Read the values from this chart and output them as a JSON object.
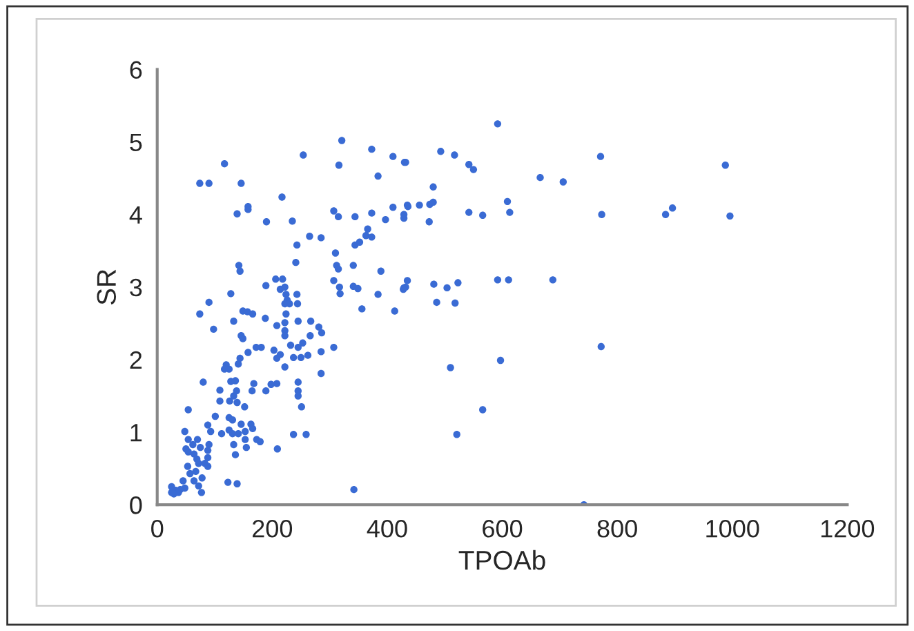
{
  "chart_data": {
    "type": "scatter",
    "xlabel": "TPOAb",
    "ylabel": "SR",
    "xlim": [
      0,
      1200
    ],
    "xticks": [
      0,
      200,
      400,
      600,
      800,
      1000,
      1200
    ],
    "ylim": [
      0,
      6
    ],
    "yticks": [
      0,
      1,
      2,
      3,
      4,
      5,
      6
    ],
    "grid": false,
    "marker": "circle",
    "series": [
      {
        "color": "#3a6bd4",
        "x": [
          592,
          771,
          493,
          517,
          542,
          550,
          432,
          666,
          706,
          435,
          456,
          474,
          480,
          480,
          429,
          473,
          542,
          566,
          609,
          613,
          773,
          884,
          896,
          988,
          996,
          429,
          435,
          481,
          486,
          504,
          518,
          523,
          592,
          611,
          688,
          510,
          597,
          772,
          566,
          521,
          742,
          321,
          254,
          373,
          410,
          430,
          117,
          384,
          74,
          90,
          146,
          316,
          217,
          158,
          158,
          139,
          190,
          235,
          307,
          315,
          344,
          373,
          397,
          410,
          436,
          429,
          265,
          285,
          243,
          344,
          352,
          363,
          366,
          373,
          310,
          312,
          315,
          341,
          241,
          142,
          144,
          389,
          307,
          317,
          318,
          341,
          349,
          384,
          356,
          413,
          432,
          428,
          206,
          218,
          189,
          128,
          90,
          74,
          98,
          133,
          149,
          157,
          166,
          146,
          149,
          188,
          208,
          222,
          214,
          222,
          224,
          226,
          222,
          224,
          230,
          244,
          243,
          222,
          222,
          245,
          267,
          266,
          281,
          286,
          307,
          285,
          245,
          250,
          262,
          253,
          203,
          208,
          214,
          222,
          237,
          232,
          181,
          172,
          158,
          144,
          141,
          120,
          117,
          125,
          80,
          109,
          128,
          136,
          133,
          138,
          165,
          168,
          189,
          198,
          208,
          126,
          139,
          152,
          109,
          245,
          245,
          245,
          285,
          251,
          101,
          54,
          88,
          93,
          112,
          125,
          131,
          141,
          125,
          131,
          146,
          153,
          163,
          166,
          173,
          179,
          133,
          153,
          155,
          136,
          209,
          237,
          259,
          48,
          54,
          50,
          54,
          62,
          70,
          75,
          90,
          88,
          88,
          64,
          69,
          72,
          83,
          88,
          53,
          57,
          67,
          78,
          64,
          72,
          77,
          45,
          48,
          123,
          139,
          25,
          32,
          37,
          40,
          29,
          25,
          342
        ],
        "values": [
          5.25,
          4.8,
          4.87,
          4.82,
          4.69,
          4.62,
          4.72,
          4.51,
          4.45,
          4.13,
          4.13,
          4.14,
          4.17,
          4.38,
          3.95,
          3.9,
          4.03,
          3.99,
          4.18,
          4.03,
          4.0,
          4.0,
          4.09,
          4.68,
          3.98,
          2.99,
          3.09,
          3.04,
          2.79,
          2.99,
          2.78,
          3.06,
          3.1,
          3.1,
          3.1,
          1.89,
          1.99,
          2.18,
          1.31,
          0.97,
          0.0,
          5.02,
          4.82,
          4.9,
          4.8,
          4.72,
          4.7,
          4.53,
          4.43,
          4.43,
          4.43,
          4.68,
          4.24,
          4.11,
          4.07,
          4.01,
          3.9,
          3.91,
          4.05,
          3.97,
          3.97,
          4.02,
          3.93,
          4.1,
          4.11,
          4.0,
          3.7,
          3.68,
          3.58,
          3.58,
          3.62,
          3.71,
          3.8,
          3.69,
          3.47,
          3.3,
          3.25,
          3.3,
          3.34,
          3.3,
          3.22,
          3.22,
          3.09,
          3.0,
          2.91,
          3.01,
          2.98,
          2.9,
          2.7,
          2.67,
          3.0,
          2.97,
          3.11,
          3.11,
          3.02,
          2.91,
          2.79,
          2.63,
          2.42,
          2.53,
          2.67,
          2.66,
          2.63,
          2.33,
          2.29,
          2.57,
          2.47,
          2.51,
          2.97,
          3.0,
          2.9,
          2.82,
          2.77,
          2.63,
          2.77,
          2.77,
          2.9,
          2.4,
          2.33,
          2.53,
          2.53,
          2.33,
          2.45,
          2.37,
          2.17,
          2.11,
          2.17,
          2.03,
          2.06,
          2.23,
          2.13,
          2.02,
          2.07,
          1.9,
          2.03,
          2.2,
          2.17,
          2.17,
          2.1,
          2.02,
          1.94,
          1.93,
          1.87,
          1.87,
          1.69,
          1.58,
          1.7,
          1.71,
          1.5,
          1.57,
          1.57,
          1.67,
          1.57,
          1.66,
          1.67,
          1.43,
          1.41,
          1.35,
          1.43,
          1.69,
          1.57,
          1.5,
          1.81,
          1.35,
          1.22,
          1.31,
          1.1,
          1.01,
          0.98,
          1.03,
          0.98,
          0.98,
          1.2,
          1.17,
          1.11,
          1.01,
          1.11,
          1.05,
          0.9,
          0.87,
          0.83,
          0.9,
          0.79,
          0.69,
          0.77,
          0.97,
          0.97,
          1.01,
          0.9,
          0.77,
          0.73,
          0.83,
          0.9,
          0.79,
          0.83,
          0.75,
          0.65,
          0.7,
          0.63,
          0.57,
          0.57,
          0.53,
          0.53,
          0.43,
          0.46,
          0.37,
          0.33,
          0.26,
          0.17,
          0.33,
          0.23,
          0.31,
          0.29,
          0.25,
          0.2,
          0.17,
          0.21,
          0.15,
          0.17,
          0.21
        ]
      }
    ]
  }
}
